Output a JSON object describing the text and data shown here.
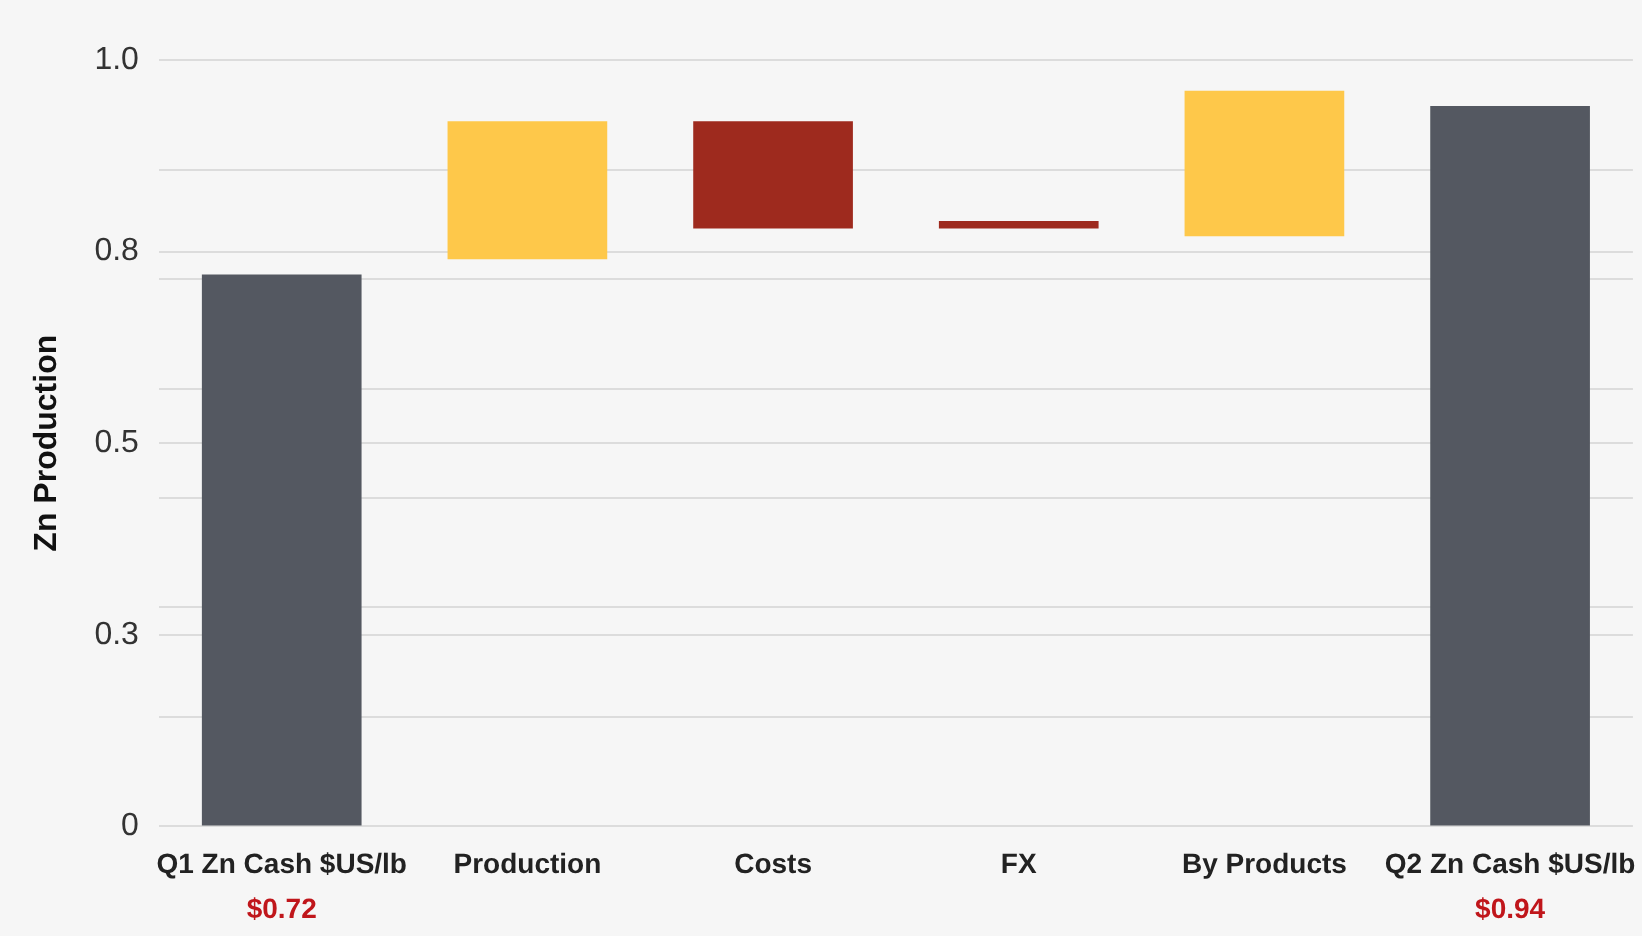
{
  "chart_data": {
    "type": "bar",
    "ylabel": "Zn Production",
    "categories": [
      "Q1 Zn Cash $US/lb",
      "Production",
      "Costs",
      "FX",
      "By Products",
      "Q2 Zn Cash $US/lb"
    ],
    "values": [
      0.72,
      0.18,
      -0.14,
      -0.01,
      0.19,
      0.94
    ],
    "base": [
      0,
      0.74,
      0.92,
      0.79,
      0.77,
      0
    ],
    "colors": [
      "#545861",
      "#fec84a",
      "#9e2a1e",
      "#9e2a1e",
      "#fec84a",
      "#545861"
    ],
    "value_labels": [
      "$0.72",
      null,
      null,
      null,
      null,
      "$0.94"
    ],
    "ylim": [
      0,
      1.0
    ],
    "yticks": [
      0,
      {
        "value": 0.143,
        "label": null
      },
      {
        "value": 0.25,
        "label": "0.3"
      },
      {
        "value": 0.286,
        "label": null
      },
      {
        "value": 0.429,
        "label": null
      },
      {
        "value": 0.5,
        "label": "0.5"
      },
      {
        "value": 0.571,
        "label": null
      },
      {
        "value": 0.714,
        "label": null
      },
      {
        "value": 0.75,
        "label": "0.8"
      },
      {
        "value": 0.857,
        "label": null
      },
      {
        "value": 1.0,
        "label": "1.0"
      }
    ],
    "grid": "y",
    "legend": false
  }
}
